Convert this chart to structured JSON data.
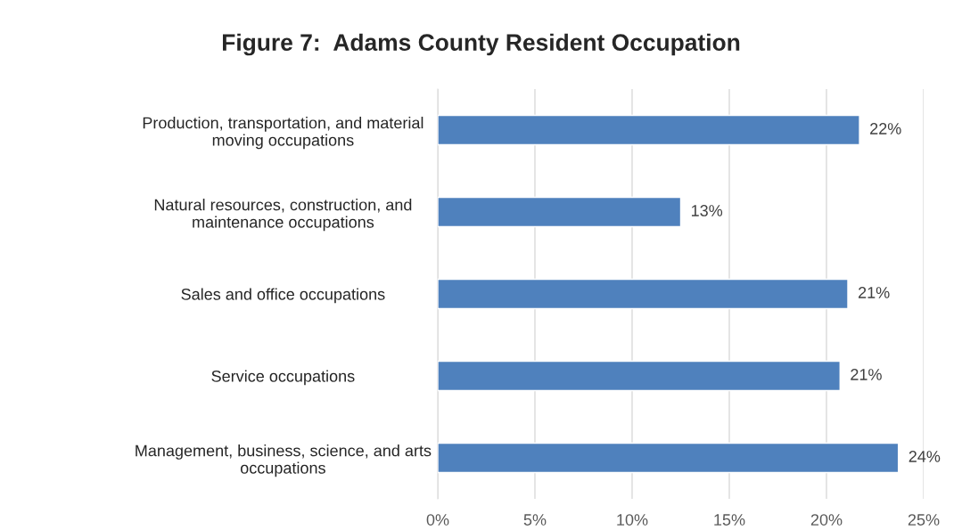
{
  "chart_data": {
    "type": "bar",
    "orientation": "horizontal",
    "title": "Figure 7:  Adams County Resident Occupation",
    "categories": [
      "Production, transportation, and material\nmoving occupations",
      "Natural resources, construction, and\nmaintenance occupations",
      "Sales and office occupations",
      "Service occupations",
      "Management, business, science, and arts\noccupations"
    ],
    "values": [
      21.7,
      12.5,
      21.1,
      20.7,
      23.7
    ],
    "value_labels": [
      "22%",
      "13%",
      "21%",
      "21%",
      "24%"
    ],
    "color": "#4f81bd",
    "xlim": [
      0,
      25
    ],
    "xticks": [
      {
        "value": 0,
        "label": "0%"
      },
      {
        "value": 5,
        "label": "5%"
      },
      {
        "value": 10,
        "label": "10%"
      },
      {
        "value": 15,
        "label": "15%"
      },
      {
        "value": 20,
        "label": "20%"
      },
      {
        "value": 25,
        "label": "25%"
      }
    ],
    "grid": "x"
  }
}
